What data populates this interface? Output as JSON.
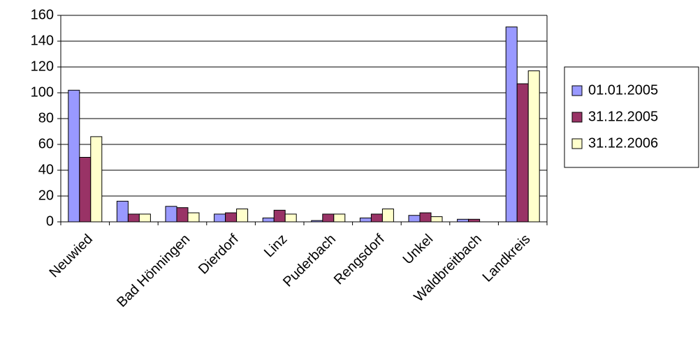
{
  "chart_data": {
    "type": "bar",
    "categories": [
      "Neuwied",
      null,
      "Bad Hönningen",
      "Dierdorf",
      "Linz",
      "Puderbach",
      "Rengsdorf",
      "Unkel",
      "Waldbreitbach",
      "Landkreis"
    ],
    "series": [
      {
        "name": "01.01.2005",
        "color": "#9999ff",
        "values": [
          102,
          16,
          12,
          6,
          3,
          1,
          3,
          5,
          2,
          151
        ]
      },
      {
        "name": "31.12.2005",
        "color": "#993366",
        "values": [
          50,
          6,
          11,
          7,
          9,
          6,
          6,
          7,
          2,
          107
        ]
      },
      {
        "name": "31.12.2006",
        "color": "#ffffcc",
        "values": [
          66,
          6,
          7,
          10,
          6,
          6,
          10,
          4,
          0,
          117
        ]
      }
    ],
    "ylim": [
      0,
      160
    ],
    "yticks": [
      0,
      20,
      40,
      60,
      80,
      100,
      120,
      140,
      160
    ],
    "grid": true,
    "legend": "right"
  }
}
